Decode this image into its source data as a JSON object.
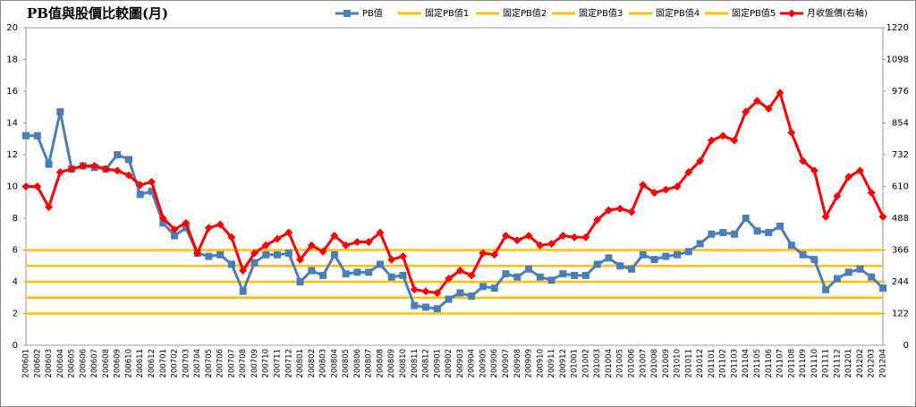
{
  "chart_data": {
    "type": "line",
    "title": "PB值與股價比較圖(月)",
    "categories": [
      "200601",
      "200602",
      "200603",
      "200604",
      "200605",
      "200606",
      "200607",
      "200608",
      "200609",
      "200610",
      "200611",
      "200612",
      "200701",
      "200702",
      "200703",
      "200704",
      "200705",
      "200706",
      "200707",
      "200708",
      "200709",
      "200710",
      "200711",
      "200712",
      "200801",
      "200802",
      "200803",
      "200804",
      "200805",
      "200806",
      "200807",
      "200808",
      "200809",
      "200810",
      "200811",
      "200812",
      "200901",
      "200902",
      "200903",
      "200904",
      "200905",
      "200906",
      "200907",
      "200908",
      "200909",
      "200910",
      "200911",
      "200912",
      "201001",
      "201002",
      "201003",
      "201004",
      "201005",
      "201006",
      "201007",
      "201008",
      "201009",
      "201010",
      "201011",
      "201012",
      "201101",
      "201102",
      "201103",
      "201104",
      "201105",
      "201106",
      "201107",
      "201108",
      "201109",
      "201110",
      "201111",
      "201112",
      "201201",
      "201202",
      "201203",
      "201204"
    ],
    "series": [
      {
        "name": "PB值",
        "color": "#4a7ebb",
        "marker": "square",
        "axis": "y",
        "values": [
          13.2,
          13.2,
          11.4,
          14.7,
          11.1,
          11.3,
          11.2,
          11.1,
          12.0,
          11.7,
          9.5,
          9.7,
          7.7,
          6.9,
          7.4,
          5.8,
          5.6,
          5.7,
          5.1,
          3.4,
          5.2,
          5.7,
          5.7,
          5.8,
          4.0,
          4.7,
          4.4,
          5.7,
          4.5,
          4.6,
          4.6,
          5.1,
          4.3,
          4.4,
          2.5,
          2.4,
          2.3,
          2.9,
          3.3,
          3.1,
          3.7,
          3.6,
          4.5,
          4.3,
          4.8,
          4.3,
          4.1,
          4.5,
          4.4,
          4.4,
          5.1,
          5.5,
          5.0,
          4.8,
          5.7,
          5.4,
          5.6,
          5.7,
          5.9,
          6.4,
          7.0,
          7.1,
          7.0,
          8.0,
          7.2,
          7.1,
          7.5,
          6.3,
          5.7,
          5.4,
          3.5,
          4.2,
          4.6,
          4.8,
          4.3,
          3.6
        ]
      },
      {
        "name": "月收盤價(右軸)",
        "color": "#ff0000",
        "marker": "diamond",
        "axis": "y2",
        "values": [
          610,
          610,
          531,
          665,
          677,
          689,
          689,
          677,
          671,
          653,
          616,
          628,
          488,
          445,
          470,
          354,
          451,
          464,
          415,
          287,
          354,
          384,
          409,
          433,
          329,
          384,
          360,
          421,
          384,
          397,
          397,
          433,
          329,
          342,
          214,
          207,
          201,
          256,
          287,
          268,
          354,
          348,
          421,
          403,
          421,
          384,
          390,
          421,
          415,
          415,
          482,
          519,
          525,
          512,
          616,
          586,
          598,
          610,
          665,
          708,
          787,
          805,
          787,
          897,
          939,
          909,
          970,
          817,
          708,
          671,
          494,
          573,
          647,
          671,
          586,
          494
        ]
      }
    ],
    "reference_lines": [
      {
        "name": "固定PB值1",
        "value": 2,
        "color": "#ffc000"
      },
      {
        "name": "固定PB值2",
        "value": 3,
        "color": "#ffc000"
      },
      {
        "name": "固定PB值3",
        "value": 4,
        "color": "#ffc000"
      },
      {
        "name": "固定PB值4",
        "value": 5,
        "color": "#ffc000"
      },
      {
        "name": "固定PB值5",
        "value": 6,
        "color": "#ffc000"
      }
    ],
    "ylim": [
      0,
      20
    ],
    "yticks": [
      0,
      2,
      4,
      6,
      8,
      10,
      12,
      14,
      16,
      18,
      20
    ],
    "y2lim": [
      0,
      1220
    ],
    "y2ticks": [
      0,
      122,
      244,
      366,
      488,
      610,
      732,
      854,
      976,
      1098,
      1220
    ],
    "grid": false
  }
}
